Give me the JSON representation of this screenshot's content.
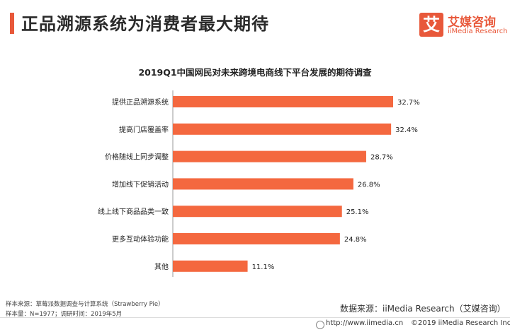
{
  "header": {
    "title": "正品溯源系统为消费者最大期待"
  },
  "logo": {
    "mark": "艾",
    "name": "艾媒咨询",
    "name_en": "iiMedia Research"
  },
  "chart_data": {
    "type": "bar",
    "orientation": "horizontal",
    "title": "2019Q1中国网民对未来跨境电商线下平台发展的期待调查",
    "categories": [
      "提供正品溯源系统",
      "提高门店覆盖率",
      "价格随线上同步调整",
      "增加线下促销活动",
      "线上线下商品品类一致",
      "更多互动体验功能",
      "其他"
    ],
    "values": [
      32.7,
      32.4,
      28.7,
      26.8,
      25.1,
      24.8,
      11.1
    ],
    "value_labels": [
      "32.7%",
      "32.4%",
      "28.7%",
      "26.8%",
      "25.1%",
      "24.8%",
      "11.1%"
    ],
    "unit": "%",
    "xlim": [
      0,
      32.7
    ],
    "bar_color": "#f4683f"
  },
  "footer": {
    "sample_source": "样本来源：草莓派数据调查与计算系统（Strawberry Pie）",
    "sample_size": "样本量：N=1977；调研时间：2019年5月",
    "data_source": "数据来源：iiMedia Research（艾媒咨询）",
    "url": "http://www.iimedia.cn",
    "copyright": "©2019  iiMedia Research  Inc"
  },
  "colors": {
    "accent": "#e8583a",
    "bar": "#f4683f"
  }
}
